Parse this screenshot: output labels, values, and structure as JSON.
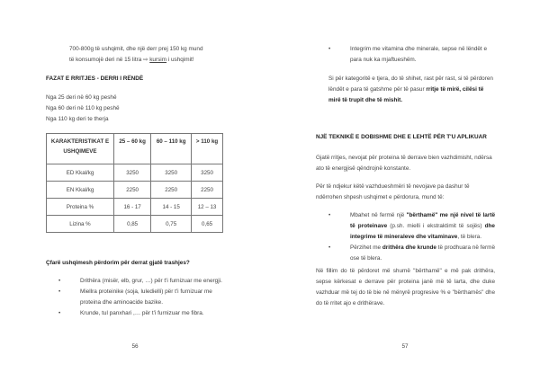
{
  "left": {
    "intro": [
      "700-800g të ushqimit, dhe një derr prej 150 kg mund",
      "të konsumojë deri në 15 litra ",
      "kursim",
      " i ushqimit!"
    ],
    "intro_arrow": "⇨",
    "heading": "FAZAT E RRITJES - DERRI I RËNDË",
    "ranges": [
      "Nga 25 deri në 60 kg peshë",
      "Nga 60 deri në 110 kg peshë",
      "Nga 110 kg deri te therja"
    ],
    "table": {
      "headers": [
        "KARAKTERISTIKAT E USHQIMEVE",
        "25 – 60 kg",
        "60 – 110 kg",
        "> 110 kg"
      ],
      "rows": [
        [
          "ED Kkal/kg",
          "3250",
          "3250",
          "3250"
        ],
        [
          "EN Kkal/kg",
          "2250",
          "2250",
          "2250"
        ],
        [
          "Proteina %",
          "16 - 17",
          "14 - 15",
          "12 – 13"
        ],
        [
          "Lizina %",
          "0,85",
          "0,75",
          "0,65"
        ]
      ]
    },
    "question": "Çfarë ushqimesh përdorim për derrat gjatë trashjes?",
    "bullets": [
      "Drithëra (misër, elb, grur, …) për t'i furnizuar me energji.",
      "Miellra proteinike (soja, luledielli) për t'i furnizuar me proteina dhe aminoacide bazike.",
      "Krunde, tul panxhari ,… për t'i furnizuar me fibra."
    ],
    "page_number": "56"
  },
  "right": {
    "bullet_top": "Integrim me vitamina dhe minerale, sepse në lëndët e para nuk ka mjaftueshëm.",
    "para1": [
      "Si për kategoritë e tjera, do të shihet, rast për rast, si të përdoren lëndët e para të gatshme për të pasur ",
      "rritje të mirë, cilësi të mirë të trupit dhe të mishit."
    ],
    "heading": "NJË TEKNIKË E DOBISHME DHE E LEHTË PËR T'U APLIKUAR",
    "para2": "Gjatë rritjes, nevojat për proteina të derrave bien vazhdimisht, ndërsa ato të energjisë qëndrojnë konstante.",
    "para3": "Për të ndjekur këtë vazhdueshmëri të nevojave pa dashur të ndërrohen shpesh ushqimet e përdorura, mund të:",
    "bullet1": [
      "Mbahet në fermë një ",
      "\"bërthamë\" me një nivel të lartë të proteinave",
      " (p.sh. mielli i ekstraktimit të sojës) ",
      "dhe integrime të mineraleve dhe vitaminave",
      ", të blera."
    ],
    "bullet2": [
      "Përzihet me ",
      "drithëra dhe krunde",
      " të prodhuara në fermë ose të blera."
    ],
    "para4": "Në fillim do të përdoret më shumë \"bërthamë\" e më pak drithëra, sepse kërkesat e derrave për proteina janë më të larta, dhe duke vazhduar më tej do të bie në mënyrë progresive % e \"bërthamës\" dhe do të rritet ajo e drithërave.",
    "page_number": "57"
  }
}
